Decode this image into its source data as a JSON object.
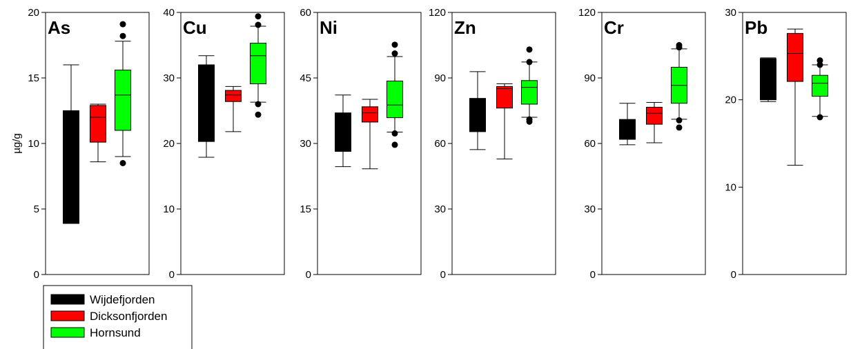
{
  "chart_data": {
    "type": "box",
    "ylabel": "µg/g",
    "colors": {
      "Wijdefjorden": "#000000",
      "Dicksonfjorden": "#ff0000",
      "Hornsund": "#00ff00"
    },
    "legend": {
      "placement": "below-left",
      "entries": [
        "Wijdefjorden",
        "Dicksonfjorden",
        "Hornsund"
      ]
    },
    "panels": [
      {
        "title": "As",
        "ylim": [
          0,
          20
        ],
        "yticks": [
          "0",
          "5",
          "10",
          "15",
          "20"
        ],
        "boxes": [
          {
            "group": "Wijdefjorden",
            "q1": 3.9,
            "median": 12.5,
            "q3": 12.5,
            "wlow": 3.9,
            "whigh": 16.0,
            "outliers": []
          },
          {
            "group": "Dicksonfjorden",
            "q1": 10.1,
            "median": 12.0,
            "q3": 12.9,
            "wlow": 8.6,
            "whigh": 13.0,
            "outliers": []
          },
          {
            "group": "Hornsund",
            "q1": 11.0,
            "median": 13.7,
            "q3": 15.6,
            "wlow": 9.0,
            "whigh": 17.8,
            "outliers": [
              8.5,
              18.2,
              19.1
            ]
          }
        ]
      },
      {
        "title": "Cu",
        "ylim": [
          0,
          40
        ],
        "yticks": [
          "0",
          "10",
          "20",
          "30",
          "40"
        ],
        "boxes": [
          {
            "group": "Wijdefjorden",
            "q1": 20.3,
            "median": 32.0,
            "q3": 32.0,
            "wlow": 17.9,
            "whigh": 33.4,
            "outliers": []
          },
          {
            "group": "Dicksonfjorden",
            "q1": 26.4,
            "median": 27.4,
            "q3": 28.1,
            "wlow": 21.8,
            "whigh": 28.7,
            "outliers": []
          },
          {
            "group": "Hornsund",
            "q1": 29.1,
            "median": 33.4,
            "q3": 35.3,
            "wlow": 26.3,
            "whigh": 37.9,
            "outliers": [
              24.4,
              26.0,
              38.1,
              39.4
            ]
          }
        ]
      },
      {
        "title": "Ni",
        "ylim": [
          0,
          60
        ],
        "yticks": [
          "0",
          "15",
          "30",
          "45",
          "60"
        ],
        "boxes": [
          {
            "group": "Wijdefjorden",
            "q1": 28.2,
            "median": 28.2,
            "q3": 37.0,
            "wlow": 24.7,
            "whigh": 41.1,
            "outliers": []
          },
          {
            "group": "Dicksonfjorden",
            "q1": 34.9,
            "median": 37.0,
            "q3": 38.4,
            "wlow": 24.2,
            "whigh": 40.1,
            "outliers": []
          },
          {
            "group": "Hornsund",
            "q1": 35.9,
            "median": 38.8,
            "q3": 44.3,
            "wlow": 32.6,
            "whigh": 49.9,
            "outliers": [
              29.7,
              32.3,
              50.6,
              52.6
            ]
          }
        ]
      },
      {
        "title": "Zn",
        "ylim": [
          0,
          120
        ],
        "yticks": [
          "0",
          "30",
          "60",
          "90",
          "120"
        ],
        "boxes": [
          {
            "group": "Wijdefjorden",
            "q1": 65.4,
            "median": 80.6,
            "q3": 80.6,
            "wlow": 57.2,
            "whigh": 92.9,
            "outliers": []
          },
          {
            "group": "Dicksonfjorden",
            "q1": 76.2,
            "median": 85.1,
            "q3": 86.1,
            "wlow": 52.9,
            "whigh": 87.3,
            "outliers": []
          },
          {
            "group": "Hornsund",
            "q1": 78.0,
            "median": 85.7,
            "q3": 88.8,
            "wlow": 72.0,
            "whigh": 97.3,
            "outliers": [
              70.0,
              71.0,
              97.3,
              103.0
            ]
          }
        ]
      },
      {
        "title": "Cr",
        "ylim": [
          0,
          120
        ],
        "yticks": [
          "0",
          "30",
          "60",
          "90",
          "120"
        ],
        "boxes": [
          {
            "group": "Wijdefjorden",
            "q1": 61.9,
            "median": 61.9,
            "q3": 71.0,
            "wlow": 59.4,
            "whigh": 78.4,
            "outliers": []
          },
          {
            "group": "Dicksonfjorden",
            "q1": 68.8,
            "median": 73.8,
            "q3": 76.6,
            "wlow": 60.3,
            "whigh": 78.8,
            "outliers": []
          },
          {
            "group": "Hornsund",
            "q1": 78.4,
            "median": 86.6,
            "q3": 94.9,
            "wlow": 71.1,
            "whigh": 103.3,
            "outliers": [
              67.3,
              70.6,
              104.0,
              105.0
            ]
          }
        ]
      },
      {
        "title": "Pb",
        "ylim": [
          0,
          30
        ],
        "yticks": [
          "0",
          "10",
          "20",
          "30"
        ],
        "boxes": [
          {
            "group": "Wijdefjorden",
            "q1": 20.0,
            "median": 24.7,
            "q3": 24.7,
            "wlow": 19.8,
            "whigh": 24.8,
            "outliers": []
          },
          {
            "group": "Dicksonfjorden",
            "q1": 22.1,
            "median": 25.3,
            "q3": 27.6,
            "wlow": 12.5,
            "whigh": 28.1,
            "outliers": []
          },
          {
            "group": "Hornsund",
            "q1": 20.4,
            "median": 21.9,
            "q3": 22.8,
            "wlow": 18.1,
            "whigh": 24.0,
            "outliers": [
              18.0,
              24.0,
              24.5
            ]
          }
        ]
      }
    ]
  }
}
